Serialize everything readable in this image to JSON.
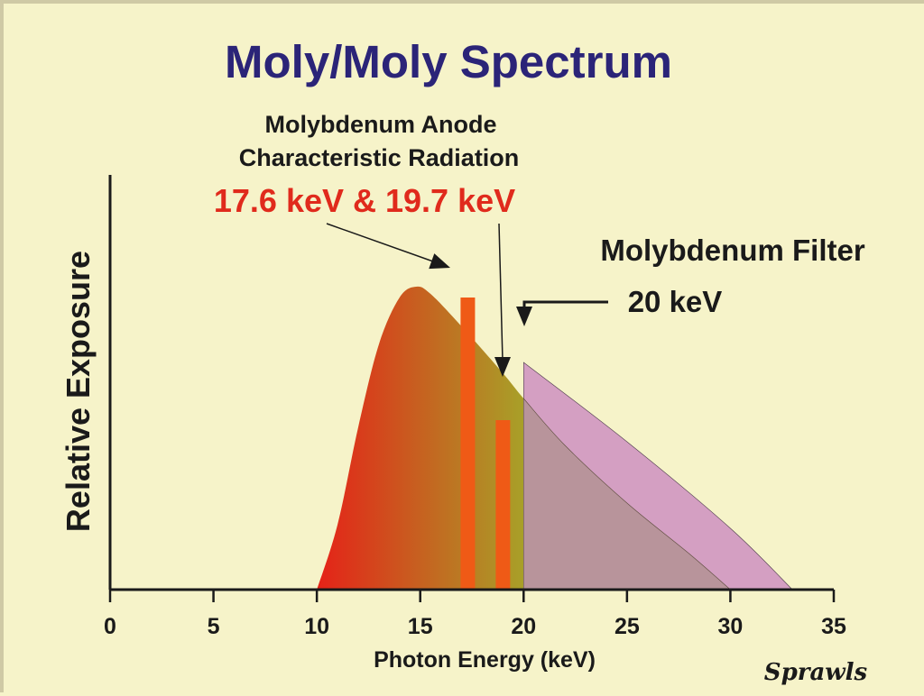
{
  "chart_data": {
    "type": "area",
    "title": "Moly/Moly Spectrum",
    "xlabel": "Photon Energy (keV)",
    "ylabel": "Relative Exposure",
    "xlim": [
      0,
      35
    ],
    "ylim": [
      0,
      100
    ],
    "x_ticks": [
      "0",
      "5",
      "10",
      "15",
      "20",
      "25",
      "30",
      "35"
    ],
    "grid": false,
    "series": [
      {
        "kind": "bremsstrahlung-unfiltered",
        "color_start": "#e52218",
        "color_end": "#a8a028",
        "x": [
          10,
          11,
          12,
          13,
          14,
          14.8,
          15.5,
          17,
          19,
          20,
          22,
          25,
          28,
          30
        ],
        "y": [
          0,
          18,
          45,
          68,
          81,
          84,
          82,
          73,
          60,
          53,
          40,
          24,
          10,
          0
        ]
      },
      {
        "kind": "molybdenum-filtered",
        "color": "#d49fc2",
        "x": [
          20,
          20,
          25,
          30,
          33
        ],
        "y": [
          0,
          63,
          41,
          17,
          0
        ]
      },
      {
        "kind": "characteristic-lines",
        "color": "#ef5a16",
        "x": [
          17.3,
          19
        ],
        "y": [
          81,
          47
        ]
      }
    ],
    "annotations": {
      "anode_line1": "Molybdenum Anode",
      "anode_line2": "Characteristic Radiation",
      "anode_energies": "17.6 keV & 19.7 keV",
      "filter_title": "Molybdenum Filter",
      "filter_edge": "20 keV"
    },
    "signature": "Sprawls"
  }
}
